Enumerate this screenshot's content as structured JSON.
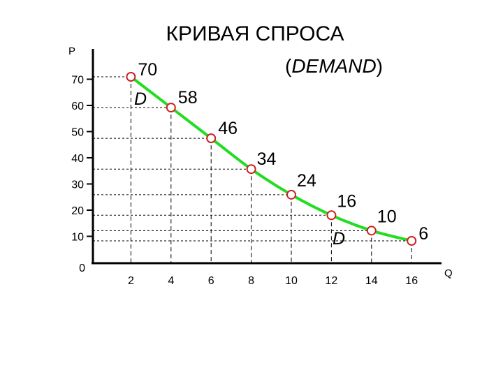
{
  "chart_data": {
    "type": "line",
    "title": "КРИВАЯ СПРОСА",
    "subtitle": "(DEMAND)",
    "xlabel": "Q",
    "ylabel": "P",
    "x": [
      2,
      4,
      6,
      8,
      10,
      12,
      14,
      16
    ],
    "y": [
      70,
      58,
      46,
      34,
      24,
      16,
      10,
      6
    ],
    "data_labels": [
      "70",
      "58",
      "46",
      "34",
      "24",
      "16",
      "10",
      "6"
    ],
    "series": [
      {
        "name": "D",
        "values": [
          70,
          58,
          46,
          34,
          24,
          16,
          10,
          6
        ]
      }
    ],
    "curve_labels": [
      "D",
      "D"
    ],
    "xticks": [
      "2",
      "4",
      "6",
      "8",
      "10",
      "12",
      "14",
      "16"
    ],
    "yticks": [
      "0",
      "10",
      "20",
      "30",
      "40",
      "50",
      "60",
      "70"
    ],
    "xlim": [
      0,
      16
    ],
    "ylim": [
      0,
      70
    ],
    "grid": "dashed guide lines from each point to axes",
    "colors": {
      "line": "#22dd22",
      "marker_edge": "#cc2222",
      "marker_fill": "#ffffff",
      "axis": "#000000"
    }
  }
}
